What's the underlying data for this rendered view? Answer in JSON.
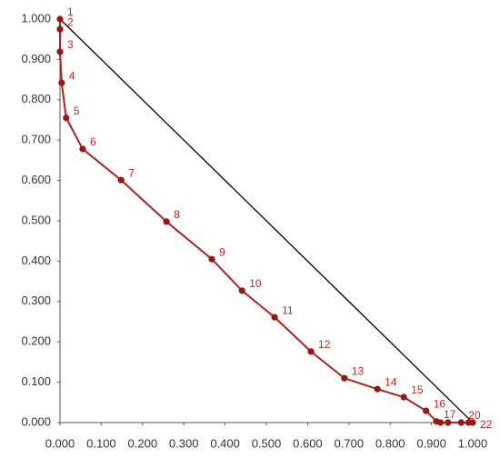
{
  "chart_data": {
    "type": "scatter",
    "x": [
      0,
      0,
      0,
      0.004,
      0.015,
      0.055,
      0.148,
      0.258,
      0.368,
      0.441,
      0.52,
      0.608,
      0.689,
      0.769,
      0.833,
      0.887,
      0.912,
      0.922,
      0.94,
      0.972,
      0.99,
      1.0
    ],
    "series": [
      {
        "color": "#b0201a",
        "values": [
          1.0,
          0.975,
          0.919,
          0.842,
          0.755,
          0.678,
          0.601,
          0.498,
          0.405,
          0.327,
          0.261,
          0.176,
          0.11,
          0.083,
          0.063,
          0.029,
          0.003,
          0,
          0,
          0,
          0,
          0
        ],
        "point_labels": [
          "1",
          "2",
          "3",
          "4",
          "5",
          "6",
          "7",
          "8",
          "9",
          "10",
          "11",
          "12",
          "13",
          "14",
          "15",
          "16",
          "17",
          null,
          null,
          "20",
          null,
          "22"
        ]
      }
    ],
    "reference_line": {
      "x": [
        0,
        1
      ],
      "y": [
        1,
        0
      ],
      "color": "#000000"
    },
    "xlim": [
      0,
      1
    ],
    "ylim": [
      0,
      1
    ],
    "xticks": [
      {
        "value": 0,
        "label": "0.000"
      },
      {
        "value": 0.1,
        "label": "0.100"
      },
      {
        "value": 0.2,
        "label": "0.200"
      },
      {
        "value": 0.3,
        "label": "0.300"
      },
      {
        "value": 0.4,
        "label": "0.400"
      },
      {
        "value": 0.5,
        "label": "0.500"
      },
      {
        "value": 0.6,
        "label": "0.600"
      },
      {
        "value": 0.7,
        "label": "0.700"
      },
      {
        "value": 0.8,
        "label": "0.800"
      },
      {
        "value": 0.9,
        "label": "0.900"
      },
      {
        "value": 1,
        "label": "1.000"
      }
    ],
    "yticks": [
      {
        "value": 0,
        "label": "0.000"
      },
      {
        "value": 0.1,
        "label": "0.100"
      },
      {
        "value": 0.2,
        "label": "0.200"
      },
      {
        "value": 0.3,
        "label": "0.300"
      },
      {
        "value": 0.4,
        "label": "0.400"
      },
      {
        "value": 0.5,
        "label": "0.500"
      },
      {
        "value": 0.6,
        "label": "0.600"
      },
      {
        "value": 0.7,
        "label": "0.700"
      },
      {
        "value": 0.8,
        "label": "0.800"
      },
      {
        "value": 0.9,
        "label": "0.900"
      },
      {
        "value": 1,
        "label": "1.000"
      }
    ],
    "grid": false
  }
}
